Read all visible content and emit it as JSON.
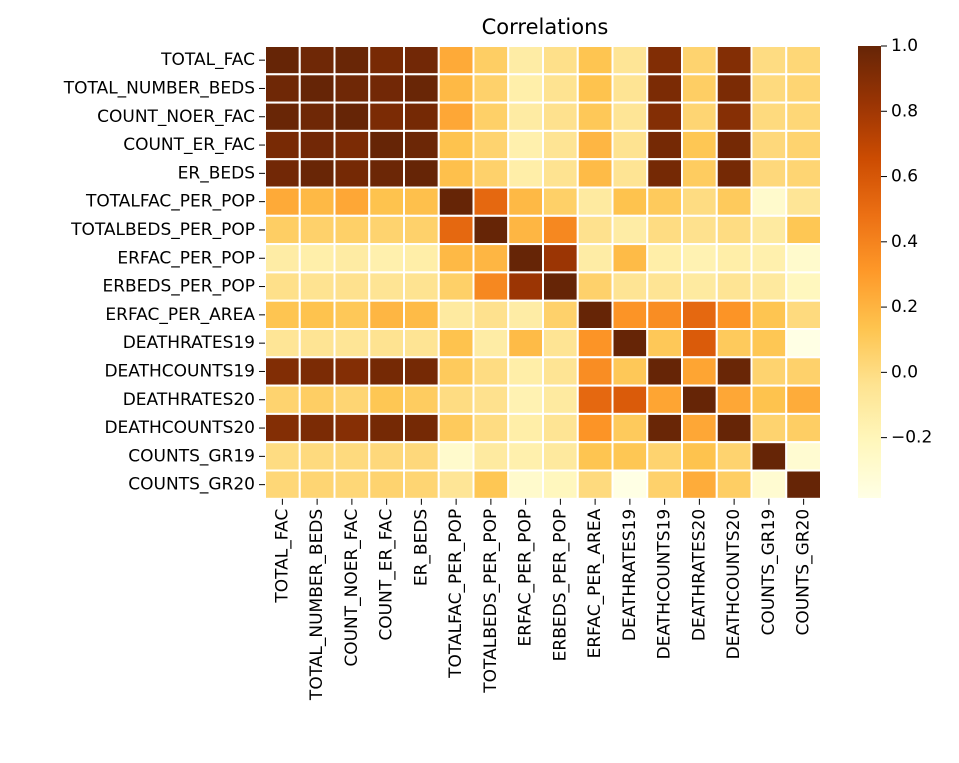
{
  "chart_data": {
    "type": "heatmap",
    "title": "Correlations",
    "xlabel": "",
    "ylabel": "",
    "labels": [
      "TOTAL_FAC",
      "TOTAL_NUMBER_BEDS",
      "COUNT_NOER_FAC",
      "COUNT_ER_FAC",
      "ER_BEDS",
      "TOTALFAC_PER_POP",
      "TOTALBEDS_PER_POP",
      "ERFAC_PER_POP",
      "ERBEDS_PER_POP",
      "ERFAC_PER_AREA",
      "DEATHRATES19",
      "DEATHCOUNTS19",
      "DEATHRATES20",
      "DEATHCOUNTS20",
      "COUNTS_GR19",
      "COUNTS_GR20"
    ],
    "matrix": [
      [
        1.0,
        0.97,
        0.99,
        0.94,
        0.96,
        0.24,
        0.08,
        -0.12,
        -0.02,
        0.13,
        -0.06,
        0.91,
        0.05,
        0.9,
        0.0,
        0.03
      ],
      [
        0.97,
        1.0,
        0.97,
        0.96,
        0.99,
        0.18,
        0.06,
        -0.14,
        -0.04,
        0.14,
        -0.05,
        0.93,
        0.08,
        0.93,
        0.01,
        0.04
      ],
      [
        0.99,
        0.97,
        1.0,
        0.93,
        0.95,
        0.25,
        0.07,
        -0.11,
        -0.03,
        0.11,
        -0.06,
        0.9,
        0.04,
        0.89,
        0.01,
        0.03
      ],
      [
        0.94,
        0.96,
        0.93,
        1.0,
        0.98,
        0.14,
        0.05,
        -0.15,
        -0.05,
        0.19,
        -0.04,
        0.95,
        0.12,
        0.95,
        0.02,
        0.05
      ],
      [
        0.96,
        0.99,
        0.95,
        0.98,
        1.0,
        0.15,
        0.06,
        -0.13,
        -0.04,
        0.17,
        -0.05,
        0.95,
        0.09,
        0.95,
        0.02,
        0.04
      ],
      [
        0.24,
        0.18,
        0.25,
        0.14,
        0.15,
        1.0,
        0.52,
        0.18,
        0.07,
        -0.1,
        0.14,
        0.1,
        0.0,
        0.1,
        -0.28,
        -0.06
      ],
      [
        0.08,
        0.06,
        0.07,
        0.05,
        0.06,
        0.52,
        1.0,
        0.19,
        0.38,
        -0.03,
        -0.12,
        0.0,
        -0.03,
        0.0,
        -0.1,
        0.12
      ],
      [
        -0.12,
        -0.14,
        -0.11,
        -0.15,
        -0.13,
        0.18,
        0.19,
        1.0,
        0.82,
        -0.12,
        0.17,
        -0.13,
        -0.17,
        -0.13,
        -0.15,
        -0.28
      ],
      [
        -0.02,
        -0.04,
        -0.03,
        -0.05,
        -0.04,
        0.07,
        0.38,
        0.82,
        1.0,
        0.06,
        -0.05,
        -0.05,
        -0.1,
        -0.05,
        -0.09,
        -0.22
      ],
      [
        0.13,
        0.14,
        0.11,
        0.19,
        0.17,
        -0.1,
        -0.03,
        -0.12,
        0.06,
        1.0,
        0.33,
        0.36,
        0.52,
        0.33,
        0.13,
        0.01
      ],
      [
        -0.06,
        -0.05,
        -0.06,
        -0.04,
        -0.05,
        0.14,
        -0.12,
        0.17,
        -0.05,
        0.33,
        1.0,
        0.11,
        0.58,
        0.1,
        0.12,
        -0.38
      ],
      [
        0.91,
        0.93,
        0.9,
        0.95,
        0.95,
        0.1,
        0.0,
        -0.13,
        -0.05,
        0.36,
        0.11,
        1.0,
        0.26,
        0.99,
        0.05,
        0.06
      ],
      [
        0.05,
        0.08,
        0.04,
        0.12,
        0.09,
        0.0,
        -0.03,
        -0.17,
        -0.1,
        0.52,
        0.58,
        0.26,
        1.0,
        0.25,
        0.14,
        0.23
      ],
      [
        0.9,
        0.93,
        0.89,
        0.95,
        0.95,
        0.1,
        0.0,
        -0.13,
        -0.05,
        0.33,
        0.1,
        0.99,
        0.25,
        1.0,
        0.05,
        0.08
      ],
      [
        0.0,
        0.01,
        0.01,
        0.02,
        0.02,
        -0.28,
        -0.1,
        -0.15,
        -0.09,
        0.13,
        0.12,
        0.05,
        0.14,
        0.05,
        1.0,
        -0.3
      ],
      [
        0.03,
        0.04,
        0.03,
        0.05,
        0.04,
        -0.06,
        0.12,
        -0.28,
        -0.22,
        0.01,
        -0.38,
        0.06,
        0.23,
        0.08,
        -0.3,
        1.0
      ]
    ],
    "colormap": "YlOrBr",
    "vmin": -0.385,
    "vmax": 1.0,
    "colorbar_ticks": [
      "1.0",
      "0.8",
      "0.6",
      "0.4",
      "0.2",
      "0.0",
      "−0.2"
    ],
    "colorbar_tick_values": [
      1.0,
      0.8,
      0.6,
      0.4,
      0.2,
      0.0,
      -0.2
    ],
    "grid": false,
    "legend": "colorbar-right"
  }
}
